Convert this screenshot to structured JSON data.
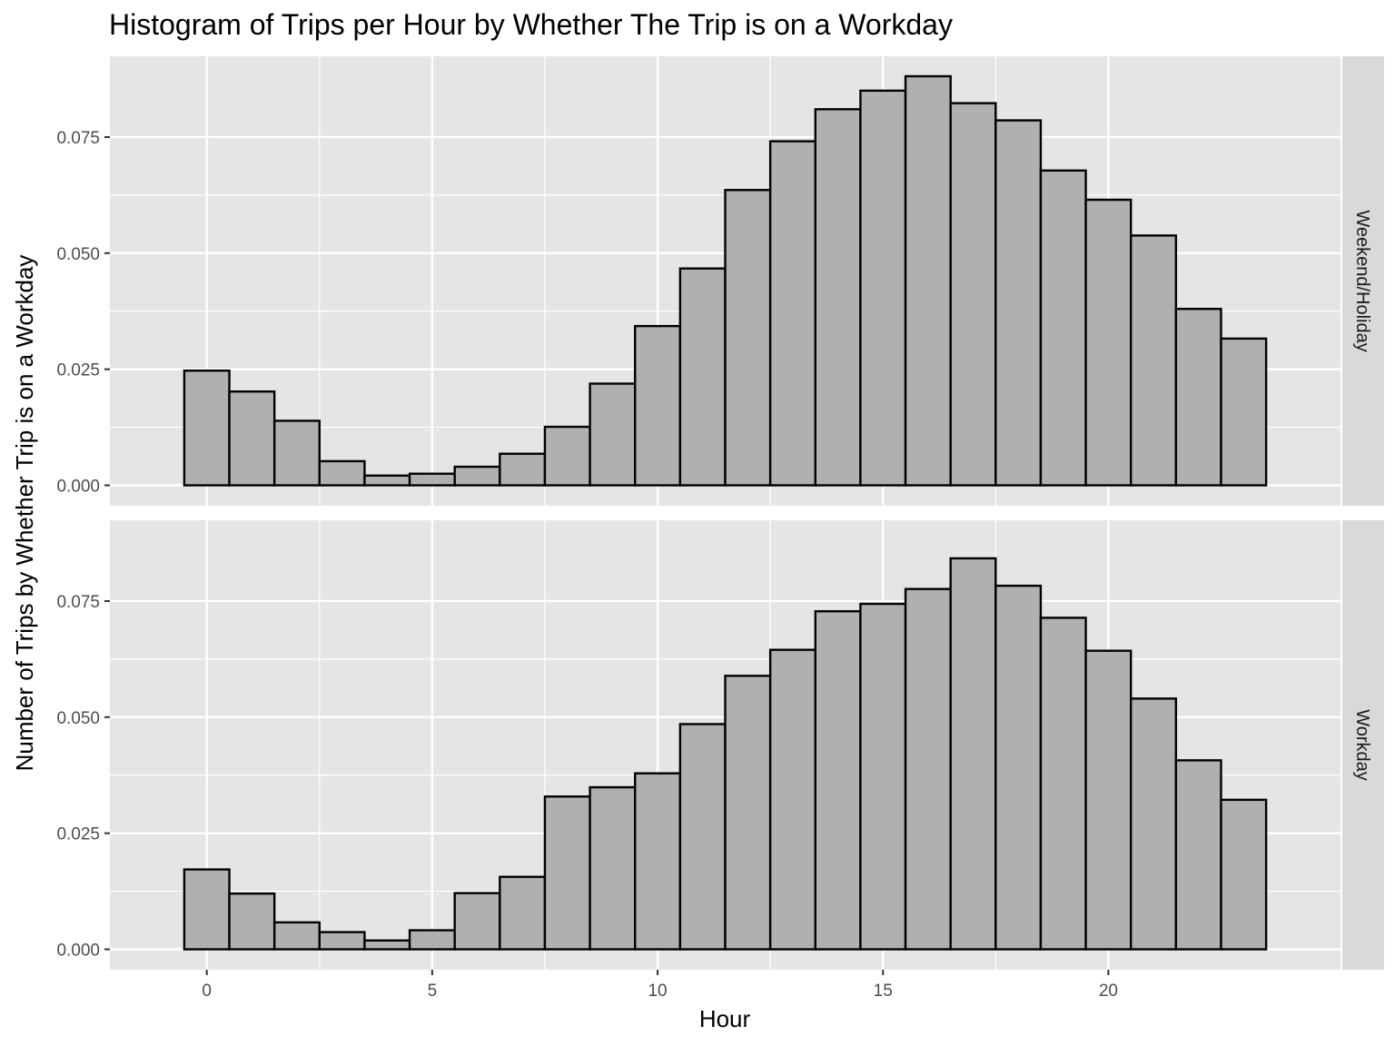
{
  "chart_data": {
    "type": "bar",
    "title": "Histogram of Trips per Hour by Whether The Trip is on a Workday",
    "xlabel": "Hour",
    "ylabel": "Number of Trips by Whether Trip is on a Workday",
    "x_ticks": [
      0,
      5,
      10,
      15,
      20
    ],
    "x_tick_labels": [
      "0",
      "5",
      "10",
      "15",
      "20"
    ],
    "y_ticks": [
      0,
      0.025,
      0.05,
      0.075
    ],
    "y_tick_labels": [
      "0.000",
      "0.025",
      "0.050",
      "0.075"
    ],
    "xlim": [
      -2.15,
      25.15
    ],
    "ylim": [
      -0.0044,
      0.0924
    ],
    "grid": true,
    "legend": "none",
    "colors": {
      "bar_fill": "#b0b0b0",
      "bar_stroke": "#000000",
      "panel_bg": "#e5e5e5",
      "strip_bg": "#d9d9d9",
      "grid": "#ffffff"
    },
    "x": [
      0,
      1,
      2,
      3,
      4,
      5,
      6,
      7,
      8,
      9,
      10,
      11,
      12,
      13,
      14,
      15,
      16,
      17,
      18,
      19,
      20,
      21,
      22,
      23
    ],
    "panels": [
      {
        "facet_label": "Weekend/Holiday",
        "values": [
          0.0247,
          0.0202,
          0.0139,
          0.0052,
          0.0021,
          0.0025,
          0.004,
          0.0068,
          0.0126,
          0.0219,
          0.0343,
          0.0467,
          0.0636,
          0.0741,
          0.081,
          0.085,
          0.0881,
          0.0823,
          0.0786,
          0.0678,
          0.0615,
          0.0538,
          0.038,
          0.0316
        ]
      },
      {
        "facet_label": "Workday",
        "values": [
          0.0172,
          0.012,
          0.0058,
          0.0037,
          0.0019,
          0.0041,
          0.0121,
          0.0156,
          0.0329,
          0.0349,
          0.0379,
          0.0485,
          0.0589,
          0.0645,
          0.0728,
          0.0744,
          0.0776,
          0.0842,
          0.0783,
          0.0714,
          0.0643,
          0.054,
          0.0407,
          0.0322
        ]
      }
    ]
  }
}
